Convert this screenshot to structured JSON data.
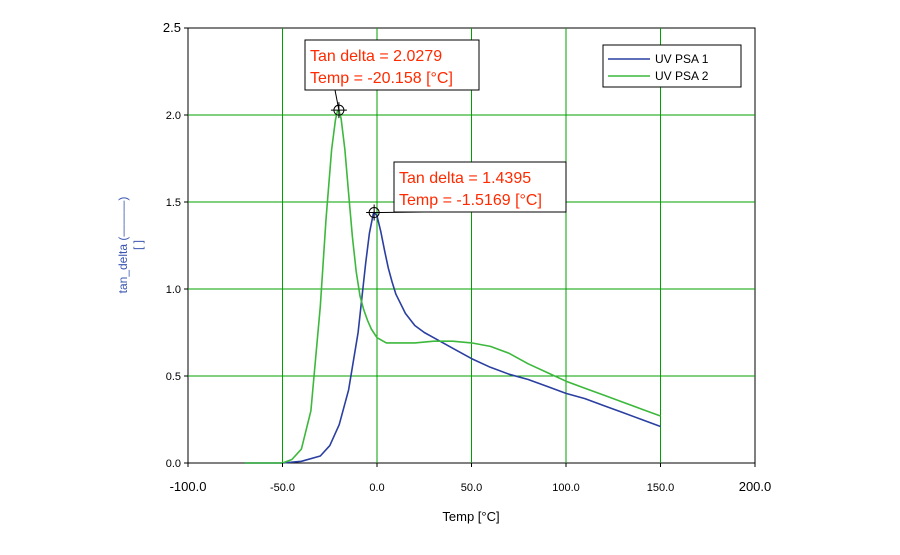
{
  "chart_data": {
    "type": "line",
    "xlabel": "Temp [°C]",
    "ylabel": "tan_delta (———)",
    "yunit": "[ ]",
    "xlim": [
      -100,
      200
    ],
    "ylim": [
      0,
      2.5
    ],
    "x_ticks": [
      -100,
      -50,
      0,
      50,
      100,
      150,
      200
    ],
    "x_tick_labels": [
      "-100.0",
      "-50.0",
      "0.0",
      "50.0",
      "100.0",
      "150.0",
      "200.0"
    ],
    "y_ticks": [
      0,
      0.5,
      1.0,
      1.5,
      2.0,
      2.5
    ],
    "y_tick_labels": [
      "0.0",
      "0.5",
      "1.0",
      "1.5",
      "2.0",
      "2.5"
    ],
    "grid": true,
    "grid_color": "#00a000",
    "legend_position": "top-right",
    "series": [
      {
        "name": "UV PSA 1",
        "color": "#2a3fa0",
        "x": [
          -70,
          -50,
          -40,
          -30,
          -25,
          -20,
          -15,
          -10,
          -8,
          -6,
          -4,
          -2,
          -1.5,
          0,
          2,
          4,
          6,
          8,
          10,
          15,
          20,
          25,
          30,
          40,
          50,
          60,
          70,
          80,
          90,
          100,
          110,
          120,
          130,
          140,
          150
        ],
        "y": [
          0.0,
          0.0,
          0.01,
          0.04,
          0.1,
          0.22,
          0.42,
          0.75,
          0.95,
          1.15,
          1.32,
          1.43,
          1.44,
          1.42,
          1.33,
          1.22,
          1.12,
          1.04,
          0.97,
          0.86,
          0.79,
          0.75,
          0.72,
          0.66,
          0.6,
          0.55,
          0.51,
          0.48,
          0.44,
          0.4,
          0.37,
          0.33,
          0.29,
          0.25,
          0.21
        ]
      },
      {
        "name": "UV PSA 2",
        "color": "#3cb83c",
        "x": [
          -70,
          -55,
          -50,
          -45,
          -40,
          -35,
          -30,
          -27,
          -24,
          -22,
          -21,
          -20.158,
          -19,
          -17,
          -15,
          -13,
          -11,
          -9,
          -7,
          -5,
          -3,
          0,
          5,
          10,
          20,
          30,
          40,
          50,
          60,
          70,
          80,
          90,
          100,
          110,
          120,
          130,
          140,
          150
        ],
        "y": [
          0.0,
          0.0,
          0.0,
          0.02,
          0.08,
          0.3,
          0.9,
          1.4,
          1.8,
          1.97,
          2.02,
          2.0279,
          1.98,
          1.8,
          1.55,
          1.3,
          1.1,
          0.96,
          0.88,
          0.82,
          0.77,
          0.72,
          0.69,
          0.69,
          0.69,
          0.7,
          0.7,
          0.69,
          0.67,
          0.63,
          0.57,
          0.52,
          0.47,
          0.43,
          0.39,
          0.35,
          0.31,
          0.27
        ]
      }
    ],
    "annotations": [
      {
        "line1": "Tan delta = 2.0279",
        "line2": "Temp = -20.158 [°C]",
        "x": -20.158,
        "y": 2.0279
      },
      {
        "line1": "Tan delta = 1.4395",
        "line2": "Temp = -1.5169 [°C]",
        "x": -1.5169,
        "y": 1.4395
      }
    ],
    "annotation_color": "#ff2a00"
  }
}
